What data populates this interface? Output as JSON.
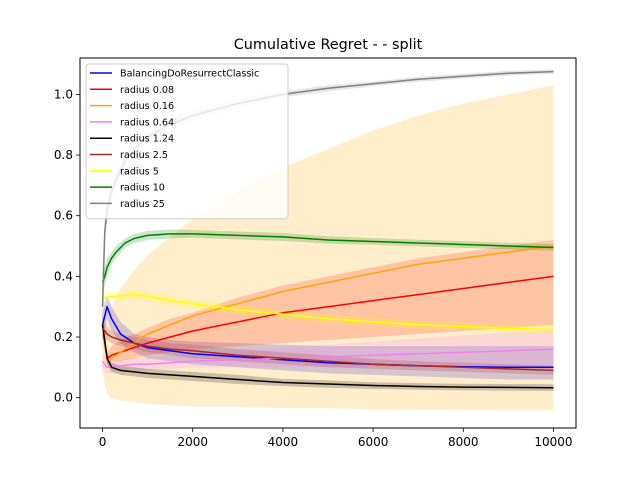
{
  "chart_data": {
    "type": "line",
    "title": "Cumulative Regret -  - split",
    "xlabel": "",
    "ylabel": "",
    "xlim": [
      -500,
      10500
    ],
    "ylim": [
      -0.1,
      1.12
    ],
    "x_ticks": [
      0,
      2000,
      4000,
      6000,
      8000,
      10000
    ],
    "x_tick_labels": [
      "0",
      "2000",
      "4000",
      "6000",
      "8000",
      "10000"
    ],
    "y_ticks": [
      0.0,
      0.2,
      0.4,
      0.6,
      0.8,
      1.0
    ],
    "y_tick_labels": [
      "0.0",
      "0.2",
      "0.4",
      "0.6",
      "0.8",
      "1.0"
    ],
    "grid": false,
    "legend_position": "top-left",
    "series": [
      {
        "name": "BalancingDoResurrectClassic",
        "color": "#0000ff",
        "x": [
          0,
          100,
          200,
          400,
          700,
          1000,
          1500,
          2000,
          3000,
          4000,
          5000,
          6000,
          7000,
          8000,
          9000,
          10000
        ],
        "y": [
          0.24,
          0.3,
          0.26,
          0.21,
          0.18,
          0.165,
          0.155,
          0.145,
          0.135,
          0.125,
          0.115,
          0.11,
          0.105,
          0.102,
          0.1,
          0.1
        ],
        "lower": [
          0.2,
          0.26,
          0.22,
          0.18,
          0.15,
          0.13,
          0.12,
          0.11,
          0.1,
          0.09,
          0.08,
          0.075,
          0.07,
          0.065,
          0.06,
          0.06
        ],
        "upper": [
          0.28,
          0.34,
          0.3,
          0.25,
          0.21,
          0.2,
          0.19,
          0.185,
          0.18,
          0.175,
          0.17,
          0.17,
          0.17,
          0.17,
          0.17,
          0.17
        ]
      },
      {
        "name": "radius 0.08",
        "color": "#ff0000",
        "x": [
          0,
          100,
          200,
          400,
          700,
          1000,
          1500,
          2000,
          3000,
          4000,
          5000,
          6000,
          7000,
          8000,
          9000,
          10000
        ],
        "y": [
          0.24,
          0.13,
          0.14,
          0.15,
          0.165,
          0.18,
          0.2,
          0.22,
          0.25,
          0.28,
          0.3,
          0.32,
          0.34,
          0.36,
          0.38,
          0.4
        ],
        "lower": [
          0.2,
          0.11,
          0.12,
          0.12,
          0.13,
          0.14,
          0.15,
          0.16,
          0.17,
          0.18,
          0.19,
          0.2,
          0.21,
          0.22,
          0.23,
          0.24
        ],
        "upper": [
          0.28,
          0.15,
          0.17,
          0.19,
          0.21,
          0.23,
          0.26,
          0.28,
          0.33,
          0.37,
          0.4,
          0.43,
          0.46,
          0.48,
          0.5,
          0.52
        ]
      },
      {
        "name": "radius 0.16",
        "color": "#ffa500",
        "x": [
          0,
          100,
          200,
          400,
          700,
          1000,
          1500,
          2000,
          3000,
          4000,
          5000,
          6000,
          7000,
          8000,
          9000,
          10000
        ],
        "y": [
          0.24,
          0.12,
          0.13,
          0.15,
          0.18,
          0.21,
          0.24,
          0.27,
          0.31,
          0.35,
          0.38,
          0.41,
          0.44,
          0.46,
          0.48,
          0.5
        ],
        "lower": [
          0.08,
          0.01,
          0.0,
          -0.01,
          -0.015,
          -0.02,
          -0.025,
          -0.03,
          -0.03,
          -0.035,
          -0.035,
          -0.038,
          -0.04,
          -0.04,
          -0.042,
          -0.042
        ],
        "upper": [
          0.36,
          0.25,
          0.3,
          0.36,
          0.42,
          0.47,
          0.53,
          0.59,
          0.68,
          0.76,
          0.82,
          0.88,
          0.93,
          0.97,
          1.0,
          1.03
        ]
      },
      {
        "name": "radius 0.64",
        "color": "#ee82ee",
        "x": [
          0,
          100,
          200,
          400,
          700,
          1000,
          1500,
          2000,
          3000,
          4000,
          5000,
          6000,
          7000,
          8000,
          9000,
          10000
        ],
        "y": [
          0.12,
          0.1,
          0.1,
          0.105,
          0.11,
          0.11,
          0.115,
          0.12,
          0.125,
          0.13,
          0.135,
          0.14,
          0.145,
          0.15,
          0.155,
          0.16
        ],
        "lower": [
          0.09,
          0.08,
          0.08,
          0.085,
          0.09,
          0.09,
          0.095,
          0.1,
          0.1,
          0.1,
          0.1,
          0.1,
          0.1,
          0.1,
          0.1,
          0.1
        ],
        "upper": [
          0.15,
          0.12,
          0.12,
          0.125,
          0.13,
          0.135,
          0.14,
          0.145,
          0.155,
          0.165,
          0.175,
          0.185,
          0.195,
          0.205,
          0.215,
          0.225
        ]
      },
      {
        "name": "radius 1.24",
        "color": "#000000",
        "x": [
          0,
          100,
          200,
          400,
          700,
          1000,
          1500,
          2000,
          3000,
          4000,
          5000,
          6000,
          7000,
          8000,
          9000,
          10000
        ],
        "y": [
          0.24,
          0.13,
          0.1,
          0.09,
          0.085,
          0.08,
          0.075,
          0.07,
          0.06,
          0.05,
          0.045,
          0.04,
          0.037,
          0.035,
          0.034,
          0.033
        ],
        "lower": [
          0.2,
          0.11,
          0.085,
          0.075,
          0.07,
          0.065,
          0.06,
          0.055,
          0.045,
          0.038,
          0.033,
          0.029,
          0.026,
          0.024,
          0.023,
          0.022
        ],
        "upper": [
          0.28,
          0.15,
          0.115,
          0.105,
          0.1,
          0.095,
          0.09,
          0.085,
          0.075,
          0.062,
          0.057,
          0.051,
          0.048,
          0.046,
          0.045,
          0.044
        ]
      },
      {
        "name": "radius 2.5",
        "color": "#a52a2a",
        "x": [
          0,
          100,
          200,
          400,
          700,
          1000,
          1500,
          2000,
          3000,
          4000,
          5000,
          6000,
          7000,
          8000,
          9000,
          10000
        ],
        "y": [
          0.23,
          0.21,
          0.2,
          0.19,
          0.18,
          0.17,
          0.16,
          0.155,
          0.14,
          0.13,
          0.12,
          0.11,
          0.105,
          0.1,
          0.095,
          0.09
        ],
        "lower": [
          0.19,
          0.19,
          0.18,
          0.17,
          0.16,
          0.15,
          0.14,
          0.13,
          0.12,
          0.11,
          0.1,
          0.095,
          0.09,
          0.085,
          0.08,
          0.075
        ],
        "upper": [
          0.27,
          0.23,
          0.22,
          0.21,
          0.2,
          0.19,
          0.18,
          0.175,
          0.16,
          0.15,
          0.14,
          0.128,
          0.12,
          0.115,
          0.11,
          0.105
        ]
      },
      {
        "name": "radius 5",
        "color": "#ffff00",
        "x": [
          0,
          100,
          200,
          400,
          700,
          1000,
          1500,
          2000,
          3000,
          4000,
          5000,
          6000,
          7000,
          8000,
          9000,
          10000
        ],
        "y": [
          0.33,
          0.33,
          0.335,
          0.335,
          0.34,
          0.335,
          0.32,
          0.31,
          0.29,
          0.275,
          0.26,
          0.25,
          0.24,
          0.235,
          0.228,
          0.225
        ],
        "lower": [
          0.3,
          0.31,
          0.32,
          0.32,
          0.325,
          0.32,
          0.305,
          0.295,
          0.275,
          0.26,
          0.245,
          0.236,
          0.227,
          0.222,
          0.215,
          0.212
        ],
        "upper": [
          0.36,
          0.35,
          0.35,
          0.35,
          0.355,
          0.35,
          0.335,
          0.325,
          0.305,
          0.29,
          0.275,
          0.264,
          0.253,
          0.248,
          0.241,
          0.238
        ]
      },
      {
        "name": "radius 10",
        "color": "#008000",
        "x": [
          0,
          50,
          100,
          200,
          300,
          500,
          700,
          1000,
          1500,
          2000,
          3000,
          4000,
          5000,
          6000,
          7000,
          8000,
          9000,
          10000
        ],
        "y": [
          0.38,
          0.4,
          0.43,
          0.46,
          0.48,
          0.51,
          0.525,
          0.535,
          0.54,
          0.54,
          0.535,
          0.53,
          0.52,
          0.515,
          0.51,
          0.505,
          0.5,
          0.495
        ],
        "lower": [
          0.34,
          0.37,
          0.4,
          0.44,
          0.46,
          0.495,
          0.51,
          0.52,
          0.525,
          0.527,
          0.522,
          0.517,
          0.508,
          0.504,
          0.499,
          0.494,
          0.489,
          0.484
        ],
        "upper": [
          0.42,
          0.43,
          0.46,
          0.48,
          0.5,
          0.525,
          0.54,
          0.55,
          0.555,
          0.553,
          0.548,
          0.543,
          0.532,
          0.526,
          0.521,
          0.516,
          0.511,
          0.506
        ]
      },
      {
        "name": "radius 25",
        "color": "#808080",
        "x": [
          0,
          50,
          100,
          200,
          300,
          500,
          700,
          1000,
          1500,
          2000,
          3000,
          4000,
          5000,
          6000,
          7000,
          8000,
          9000,
          10000
        ],
        "y": [
          0.3,
          0.55,
          0.62,
          0.68,
          0.72,
          0.78,
          0.82,
          0.86,
          0.9,
          0.93,
          0.97,
          1.0,
          1.02,
          1.035,
          1.05,
          1.06,
          1.07,
          1.075
        ],
        "lower": [
          0.2,
          0.5,
          0.58,
          0.65,
          0.69,
          0.755,
          0.8,
          0.84,
          0.885,
          0.915,
          0.958,
          0.99,
          1.01,
          1.027,
          1.042,
          1.052,
          1.062,
          1.068
        ],
        "upper": [
          0.4,
          0.6,
          0.66,
          0.71,
          0.75,
          0.805,
          0.84,
          0.88,
          0.915,
          0.945,
          0.982,
          1.01,
          1.03,
          1.043,
          1.058,
          1.068,
          1.078,
          1.082
        ]
      }
    ]
  }
}
